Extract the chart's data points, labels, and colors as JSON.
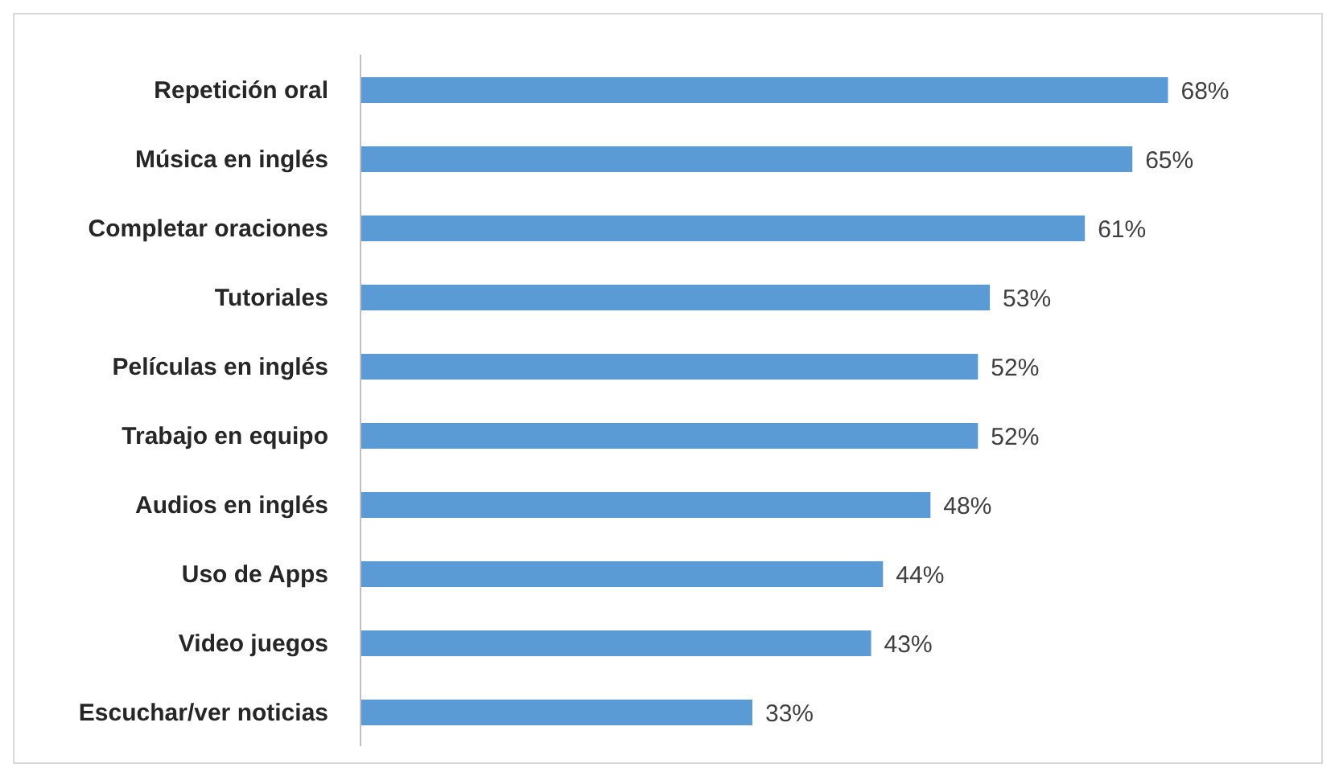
{
  "chart_data": {
    "type": "bar",
    "orientation": "horizontal",
    "categories": [
      "Repetición oral",
      "Música en inglés",
      "Completar oraciones",
      "Tutoriales",
      "Películas en inglés",
      "Trabajo en equipo",
      "Audios en inglés",
      "Uso de Apps",
      "Video juegos",
      "Escuchar/ver  noticias"
    ],
    "values": [
      68,
      65,
      61,
      53,
      52,
      52,
      48,
      44,
      43,
      33
    ],
    "value_labels": [
      "68%",
      "65%",
      "61%",
      "53%",
      "52%",
      "52%",
      "48%",
      "44%",
      "43%",
      "33%"
    ],
    "color": "#5b9bd5",
    "grid": false,
    "legend": false
  }
}
